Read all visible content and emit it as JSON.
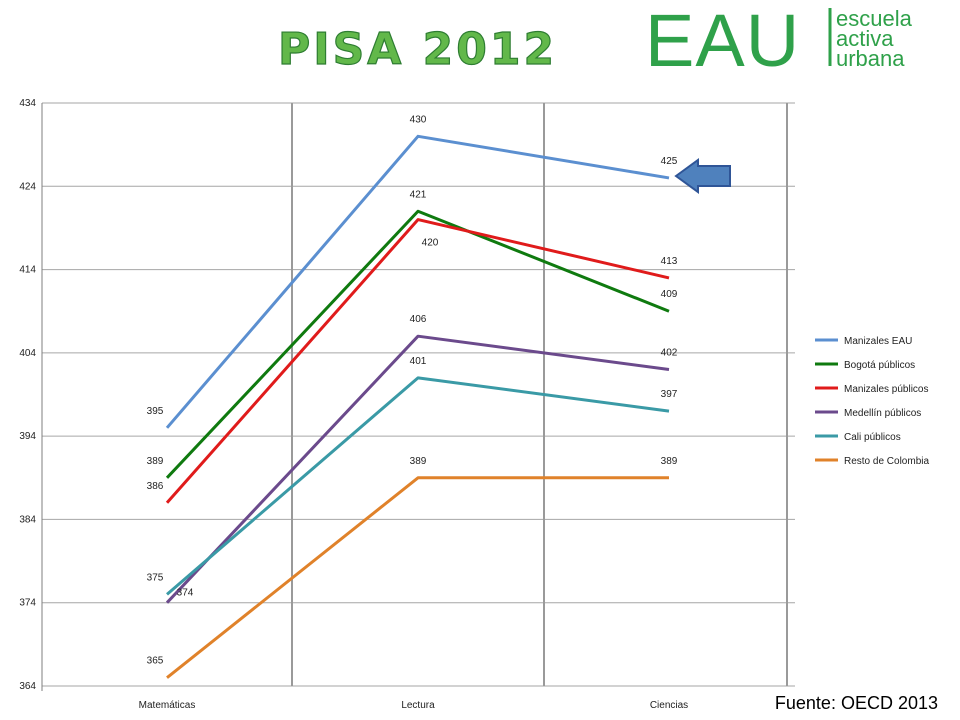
{
  "header": {
    "title": "PISA 2012",
    "logo_main": "EAU",
    "logo_lines": [
      "escuela",
      "activa",
      "urbana"
    ]
  },
  "source": "Fuente: OECD 2013",
  "chart_data": {
    "type": "line",
    "categories": [
      "Matemáticas",
      "Lectura",
      "Ciencias"
    ],
    "ylim": [
      364,
      434
    ],
    "yticks": [
      364,
      374,
      384,
      394,
      404,
      414,
      424,
      434
    ],
    "grid": true,
    "legend_position": "right",
    "series": [
      {
        "name": "Manizales EAU",
        "color": "#5b8fd0",
        "values": [
          395,
          430,
          425
        ],
        "labels": [
          "395",
          "430",
          "425"
        ]
      },
      {
        "name": "Bogotá públicos",
        "color": "#0f7a0f",
        "values": [
          389,
          421,
          409
        ],
        "labels": [
          "389",
          "421",
          "409"
        ]
      },
      {
        "name": "Manizales públicos",
        "color": "#e01b1b",
        "values": [
          386,
          420,
          413
        ],
        "labels": [
          "386",
          "420",
          "413"
        ]
      },
      {
        "name": "Medellín públicos",
        "color": "#6b4a8c",
        "values": [
          374,
          406,
          402
        ],
        "labels": [
          "374",
          "406",
          "402"
        ]
      },
      {
        "name": "Cali públicos",
        "color": "#3a9aa6",
        "values": [
          375,
          401,
          397
        ],
        "labels": [
          "375",
          "401",
          "397"
        ]
      },
      {
        "name": "Resto de Colombia",
        "color": "#e0822a",
        "values": [
          365,
          389,
          389
        ],
        "labels": [
          "365",
          "389",
          "389"
        ]
      }
    ],
    "annotation": {
      "type": "arrow",
      "pointing_to": "Manizales EAU Ciencias",
      "color": "#4f81bd"
    }
  }
}
